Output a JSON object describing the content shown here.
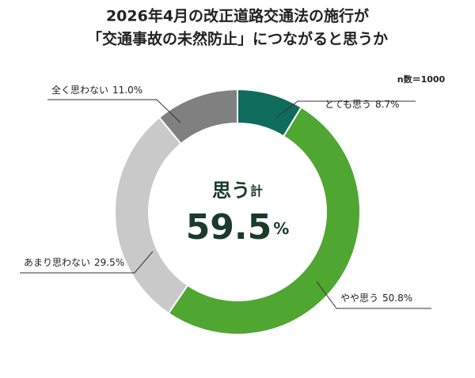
{
  "chart_data": {
    "type": "donut",
    "title": [
      "2026年4月の改正道路交通法の施行が",
      "「交通事故の未然防止」につながると思うか"
    ],
    "annotation": "n数＝1000",
    "categories": [
      "とても思う",
      "やや思う",
      "あまり思わない",
      "全く思わない"
    ],
    "values": [
      8.7,
      50.8,
      29.5,
      11.0
    ],
    "value_labels": [
      "8.7%",
      "50.8%",
      "29.5%",
      "11.0%"
    ],
    "colors": [
      "#0f6b5c",
      "#4fa631",
      "#c9c9c9",
      "#808080"
    ],
    "center": {
      "label": "思う",
      "label_suffix": "計",
      "value": 59.5,
      "unit": "%"
    }
  }
}
